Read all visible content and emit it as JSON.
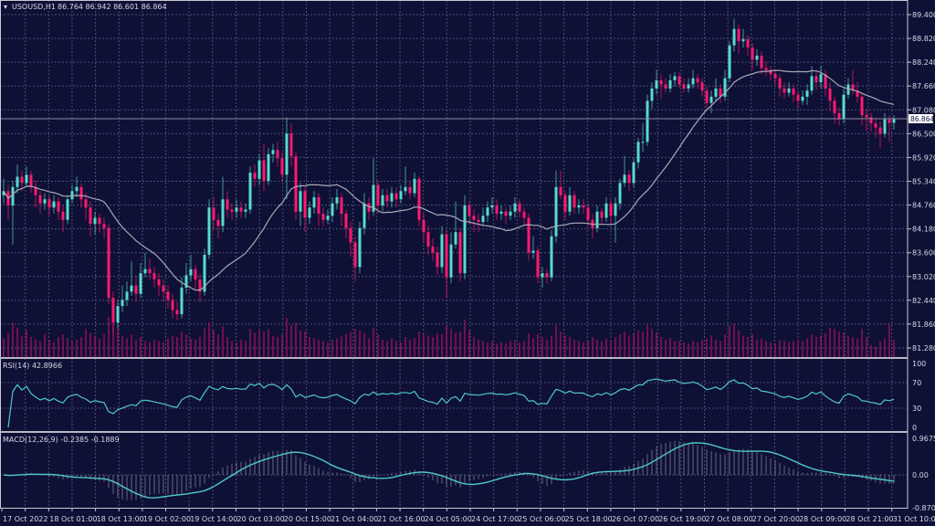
{
  "header": {
    "symbol": "USOUSD,H1",
    "ohlc_text": "86.764 86.942 86.601 86.864"
  },
  "colors": {
    "background": "#0f1036",
    "grid": "#4a4e78",
    "bull": "#56dccb",
    "bear": "#ff1a6e",
    "volume": "#b01060",
    "ma": "#a9a9b4",
    "indicator_line": "#4fc9c9",
    "macd_bars": "#9a9aa6",
    "frame": "#c8c8d2"
  },
  "price_axis": {
    "ticks": [
      "89.400",
      "88.820",
      "88.240",
      "87.660",
      "87.080",
      "86.500",
      "85.920",
      "85.340",
      "84.760",
      "84.180",
      "83.600",
      "83.020",
      "82.440",
      "81.860",
      "81.280"
    ],
    "current_price": "86.864",
    "ylim": [
      81.035,
      89.756
    ]
  },
  "time_axis": {
    "labels": [
      "17 Oct 2022",
      "18 Oct 01:00",
      "18 Oct 13:00",
      "19 Oct 02:00",
      "19 Oct 14:00",
      "20 Oct 03:00",
      "20 Oct 15:00",
      "21 Oct 04:00",
      "21 Oct 16:00",
      "24 Oct 05:00",
      "24 Oct 17:00",
      "25 Oct 06:00",
      "25 Oct 18:00",
      "26 Oct 07:00",
      "26 Oct 19:00",
      "27 Oct 08:00",
      "27 Oct 20:00",
      "28 Oct 09:00",
      "28 Oct 21:00",
      "31 Oct 10:00"
    ]
  },
  "rsi": {
    "label": "RSI(14) 42.8966",
    "ticks": [
      "100",
      "70",
      "30",
      "0"
    ],
    "ylim": [
      0,
      100
    ]
  },
  "macd": {
    "label": "MACD(12,26,9) -0.2385 -0.1889",
    "ticks": [
      "0.9675",
      "0.00",
      "-0.8702"
    ],
    "ylim": [
      -0.8702,
      0.9675
    ]
  },
  "chart_data": {
    "type": "candlestick",
    "title": "USOUSD,H1",
    "ohlc": [
      [
        85.0,
        85.4,
        84.8,
        85.1
      ],
      [
        85.1,
        85.25,
        84.4,
        84.75
      ],
      [
        84.75,
        85.35,
        83.8,
        85.2
      ],
      [
        85.2,
        85.75,
        85.05,
        85.45
      ],
      [
        85.45,
        85.6,
        85.1,
        85.3
      ],
      [
        85.3,
        85.7,
        85.2,
        85.5
      ],
      [
        85.5,
        85.6,
        85.05,
        85.2
      ],
      [
        85.2,
        85.35,
        84.7,
        85.0
      ],
      [
        85.0,
        85.1,
        84.55,
        84.8
      ],
      [
        84.8,
        85.05,
        84.65,
        84.9
      ],
      [
        84.9,
        85.0,
        84.5,
        84.7
      ],
      [
        84.7,
        85.0,
        84.55,
        84.85
      ],
      [
        84.85,
        84.95,
        84.4,
        84.6
      ],
      [
        84.6,
        84.75,
        84.1,
        84.4
      ],
      [
        84.4,
        85.0,
        84.3,
        84.9
      ],
      [
        84.9,
        85.25,
        84.8,
        85.1
      ],
      [
        85.1,
        85.45,
        84.95,
        85.2
      ],
      [
        85.2,
        85.3,
        84.7,
        84.9
      ],
      [
        84.9,
        85.05,
        84.4,
        84.7
      ],
      [
        84.7,
        84.85,
        84.0,
        84.3
      ],
      [
        84.3,
        84.6,
        84.05,
        84.45
      ],
      [
        84.45,
        84.55,
        84.1,
        84.3
      ],
      [
        84.3,
        84.45,
        83.95,
        84.2
      ],
      [
        84.2,
        84.3,
        82.35,
        82.5
      ],
      [
        82.5,
        82.65,
        81.6,
        81.9
      ],
      [
        81.9,
        82.45,
        81.75,
        82.3
      ],
      [
        82.3,
        82.8,
        82.15,
        82.45
      ],
      [
        82.45,
        82.9,
        82.3,
        82.65
      ],
      [
        82.65,
        83.4,
        82.55,
        82.8
      ],
      [
        82.8,
        83.05,
        82.4,
        82.6
      ],
      [
        82.6,
        83.35,
        82.5,
        83.1
      ],
      [
        83.1,
        83.6,
        83.0,
        83.2
      ],
      [
        83.2,
        83.45,
        82.95,
        83.1
      ],
      [
        83.1,
        83.25,
        82.75,
        82.95
      ],
      [
        82.95,
        83.1,
        82.55,
        82.8
      ],
      [
        82.8,
        82.95,
        82.4,
        82.65
      ],
      [
        82.65,
        82.8,
        82.25,
        82.45
      ],
      [
        82.45,
        82.6,
        82.0,
        82.2
      ],
      [
        82.2,
        82.4,
        81.95,
        82.1
      ],
      [
        82.1,
        83.0,
        82.0,
        82.75
      ],
      [
        82.75,
        83.35,
        82.6,
        83.05
      ],
      [
        83.05,
        83.55,
        82.9,
        83.2
      ],
      [
        83.2,
        83.3,
        82.7,
        82.95
      ],
      [
        82.95,
        83.1,
        82.4,
        82.65
      ],
      [
        82.65,
        83.7,
        82.55,
        83.55
      ],
      [
        83.55,
        84.9,
        83.45,
        84.7
      ],
      [
        84.7,
        84.95,
        84.15,
        84.4
      ],
      [
        84.4,
        84.55,
        83.95,
        84.25
      ],
      [
        84.25,
        85.45,
        84.1,
        84.9
      ],
      [
        84.9,
        85.1,
        84.45,
        84.65
      ],
      [
        84.65,
        84.8,
        84.4,
        84.6
      ],
      [
        84.6,
        84.9,
        84.45,
        84.7
      ],
      [
        84.7,
        84.85,
        84.45,
        84.6
      ],
      [
        84.6,
        84.8,
        84.45,
        84.65
      ],
      [
        84.65,
        85.7,
        84.55,
        85.55
      ],
      [
        85.55,
        85.75,
        85.2,
        85.4
      ],
      [
        85.4,
        86.0,
        85.25,
        85.85
      ],
      [
        85.85,
        86.25,
        85.1,
        85.35
      ],
      [
        85.35,
        86.15,
        85.25,
        86.0
      ],
      [
        86.0,
        86.25,
        85.8,
        86.1
      ],
      [
        86.1,
        86.3,
        85.7,
        85.9
      ],
      [
        85.9,
        86.05,
        85.35,
        85.5
      ],
      [
        85.5,
        86.9,
        84.9,
        86.5
      ],
      [
        86.5,
        86.75,
        85.7,
        85.95
      ],
      [
        85.95,
        86.05,
        84.4,
        84.6
      ],
      [
        84.6,
        85.3,
        84.25,
        85.1
      ],
      [
        85.1,
        85.2,
        84.1,
        84.45
      ],
      [
        84.45,
        84.85,
        84.3,
        84.7
      ],
      [
        84.7,
        85.1,
        84.55,
        84.95
      ],
      [
        84.95,
        85.05,
        84.25,
        84.55
      ],
      [
        84.55,
        84.7,
        84.25,
        84.4
      ],
      [
        84.4,
        84.65,
        84.3,
        84.5
      ],
      [
        84.5,
        84.95,
        84.35,
        84.8
      ],
      [
        84.8,
        85.15,
        84.65,
        84.95
      ],
      [
        84.95,
        85.05,
        84.25,
        84.55
      ],
      [
        84.55,
        84.65,
        83.95,
        84.2
      ],
      [
        84.2,
        84.35,
        83.5,
        83.85
      ],
      [
        83.85,
        84.0,
        82.9,
        83.25
      ],
      [
        83.25,
        84.35,
        83.1,
        84.2
      ],
      [
        84.2,
        85.05,
        84.05,
        84.8
      ],
      [
        84.8,
        84.95,
        84.4,
        84.6
      ],
      [
        84.6,
        85.9,
        84.5,
        85.25
      ],
      [
        85.25,
        85.35,
        84.55,
        84.75
      ],
      [
        84.75,
        85.15,
        84.6,
        85.0
      ],
      [
        85.0,
        85.15,
        84.7,
        84.85
      ],
      [
        84.85,
        85.2,
        84.7,
        85.05
      ],
      [
        85.05,
        85.2,
        84.7,
        84.9
      ],
      [
        84.9,
        85.25,
        84.8,
        85.1
      ],
      [
        85.1,
        85.7,
        85.0,
        85.2
      ],
      [
        85.2,
        85.35,
        84.9,
        85.05
      ],
      [
        85.05,
        85.55,
        84.95,
        85.4
      ],
      [
        85.4,
        85.45,
        84.25,
        84.4
      ],
      [
        84.4,
        84.55,
        83.85,
        84.1
      ],
      [
        84.1,
        84.25,
        83.55,
        83.75
      ],
      [
        83.75,
        83.95,
        83.4,
        83.6
      ],
      [
        83.6,
        83.75,
        83.05,
        83.25
      ],
      [
        83.25,
        84.25,
        83.1,
        84.05
      ],
      [
        84.05,
        84.15,
        82.5,
        83.0
      ],
      [
        83.0,
        84.1,
        82.85,
        83.8
      ],
      [
        83.8,
        84.85,
        83.7,
        84.1
      ],
      [
        84.1,
        84.2,
        82.9,
        83.1
      ],
      [
        83.1,
        85.0,
        82.95,
        84.75
      ],
      [
        84.75,
        84.85,
        84.3,
        84.5
      ],
      [
        84.5,
        84.65,
        84.1,
        84.4
      ],
      [
        84.4,
        84.55,
        84.1,
        84.35
      ],
      [
        84.35,
        84.7,
        84.25,
        84.5
      ],
      [
        84.5,
        84.85,
        84.35,
        84.7
      ],
      [
        84.7,
        84.95,
        84.55,
        84.75
      ],
      [
        84.75,
        84.9,
        84.4,
        84.55
      ],
      [
        84.55,
        84.75,
        84.4,
        84.6
      ],
      [
        84.6,
        84.7,
        84.3,
        84.5
      ],
      [
        84.5,
        84.75,
        84.4,
        84.6
      ],
      [
        84.6,
        84.95,
        84.45,
        84.8
      ],
      [
        84.8,
        84.9,
        84.45,
        84.6
      ],
      [
        84.6,
        84.7,
        84.25,
        84.45
      ],
      [
        84.45,
        84.55,
        83.4,
        83.6
      ],
      [
        83.6,
        84.0,
        83.45,
        83.65
      ],
      [
        83.65,
        83.75,
        82.85,
        83.0
      ],
      [
        83.0,
        83.25,
        82.75,
        83.1
      ],
      [
        83.1,
        83.2,
        82.85,
        83.0
      ],
      [
        83.0,
        84.15,
        82.9,
        84.0
      ],
      [
        84.0,
        85.6,
        83.85,
        85.2
      ],
      [
        85.2,
        85.6,
        84.9,
        85.0
      ],
      [
        85.0,
        85.1,
        84.4,
        84.6
      ],
      [
        84.6,
        85.2,
        84.5,
        85.0
      ],
      [
        85.0,
        85.1,
        84.55,
        84.7
      ],
      [
        84.7,
        84.9,
        84.55,
        84.75
      ],
      [
        84.75,
        84.9,
        84.55,
        84.7
      ],
      [
        84.7,
        84.8,
        84.25,
        84.4
      ],
      [
        84.4,
        84.55,
        83.95,
        84.2
      ],
      [
        84.2,
        84.75,
        84.1,
        84.6
      ],
      [
        84.6,
        84.7,
        84.3,
        84.45
      ],
      [
        84.45,
        84.95,
        84.35,
        84.8
      ],
      [
        84.8,
        84.9,
        84.3,
        84.5
      ],
      [
        84.5,
        84.95,
        83.85,
        84.8
      ],
      [
        84.8,
        85.4,
        84.65,
        85.3
      ],
      [
        85.3,
        85.95,
        85.2,
        85.5
      ],
      [
        85.5,
        85.6,
        85.1,
        85.3
      ],
      [
        85.3,
        85.9,
        85.2,
        85.8
      ],
      [
        85.8,
        86.4,
        85.65,
        86.3
      ],
      [
        86.3,
        86.75,
        86.05,
        86.3
      ],
      [
        86.3,
        87.45,
        86.2,
        87.3
      ],
      [
        87.3,
        87.75,
        87.1,
        87.6
      ],
      [
        87.6,
        88.05,
        87.45,
        87.8
      ],
      [
        87.8,
        87.95,
        87.35,
        87.7
      ],
      [
        87.7,
        87.85,
        87.5,
        87.6
      ],
      [
        87.6,
        87.95,
        87.5,
        87.8
      ],
      [
        87.8,
        88.0,
        87.65,
        87.9
      ],
      [
        87.9,
        88.0,
        87.6,
        87.7
      ],
      [
        87.7,
        87.85,
        87.5,
        87.6
      ],
      [
        87.6,
        87.85,
        87.5,
        87.7
      ],
      [
        87.7,
        88.05,
        87.6,
        87.85
      ],
      [
        87.85,
        87.95,
        87.6,
        87.75
      ],
      [
        87.75,
        87.85,
        87.4,
        87.55
      ],
      [
        87.55,
        87.65,
        87.05,
        87.25
      ],
      [
        87.25,
        87.55,
        87.0,
        87.4
      ],
      [
        87.4,
        87.85,
        87.3,
        87.6
      ],
      [
        87.6,
        87.7,
        87.25,
        87.4
      ],
      [
        87.4,
        88.05,
        87.3,
        87.85
      ],
      [
        87.85,
        88.75,
        87.75,
        88.65
      ],
      [
        88.65,
        89.3,
        88.5,
        89.05
      ],
      [
        89.05,
        89.15,
        88.45,
        88.75
      ],
      [
        88.75,
        89.05,
        88.6,
        88.8
      ],
      [
        88.8,
        88.9,
        88.4,
        88.6
      ],
      [
        88.6,
        88.7,
        88.05,
        88.3
      ],
      [
        88.3,
        88.55,
        88.15,
        88.4
      ],
      [
        88.4,
        88.5,
        87.95,
        88.1
      ],
      [
        88.1,
        88.25,
        87.9,
        88.05
      ],
      [
        88.05,
        88.15,
        87.8,
        87.95
      ],
      [
        87.95,
        88.05,
        87.7,
        87.85
      ],
      [
        87.85,
        87.95,
        87.4,
        87.6
      ],
      [
        87.6,
        87.75,
        87.35,
        87.5
      ],
      [
        87.5,
        87.75,
        87.4,
        87.6
      ],
      [
        87.6,
        87.7,
        87.25,
        87.45
      ],
      [
        87.45,
        87.55,
        87.1,
        87.3
      ],
      [
        87.3,
        87.55,
        87.2,
        87.4
      ],
      [
        87.4,
        87.7,
        87.2,
        87.55
      ],
      [
        87.55,
        88.15,
        87.45,
        87.9
      ],
      [
        87.9,
        88.05,
        87.55,
        87.75
      ],
      [
        87.75,
        88.15,
        87.6,
        87.95
      ],
      [
        87.95,
        88.05,
        87.4,
        87.6
      ],
      [
        87.6,
        87.75,
        87.05,
        87.3
      ],
      [
        87.3,
        87.4,
        86.75,
        87.0
      ],
      [
        87.0,
        87.15,
        86.7,
        86.85
      ],
      [
        86.85,
        87.6,
        86.75,
        87.45
      ],
      [
        87.45,
        87.85,
        87.35,
        87.7
      ],
      [
        87.7,
        88.05,
        87.45,
        87.55
      ],
      [
        87.55,
        87.75,
        87.25,
        87.4
      ],
      [
        87.4,
        87.5,
        86.7,
        86.95
      ],
      [
        86.95,
        87.1,
        86.55,
        86.9
      ],
      [
        86.9,
        87.0,
        86.55,
        86.75
      ],
      [
        86.75,
        86.85,
        86.4,
        86.65
      ],
      [
        86.65,
        86.8,
        86.15,
        86.5
      ],
      [
        86.5,
        87.0,
        86.4,
        86.85
      ],
      [
        86.85,
        86.95,
        86.3,
        86.76
      ],
      [
        86.764,
        86.942,
        86.601,
        86.864
      ]
    ],
    "volume": [
      1400,
      1800,
      2600,
      2200,
      1600,
      2000,
      1500,
      1300,
      1200,
      1700,
      1300,
      1100,
      1500,
      1700,
      1400,
      1200,
      1300,
      1500,
      2100,
      1800,
      1600,
      1400,
      1700,
      3000,
      2800,
      2100,
      1600,
      1400,
      1700,
      1300,
      1500,
      1200,
      1100,
      1300,
      1200,
      1100,
      1400,
      1600,
      1500,
      1900,
      1700,
      1400,
      1300,
      1500,
      2200,
      2600,
      2000,
      1700,
      2300,
      1500,
      1200,
      1100,
      1300,
      1200,
      2100,
      1800,
      2000,
      1900,
      2100,
      1600,
      1500,
      1700,
      2900,
      2400,
      2600,
      2000,
      1900,
      1500,
      1400,
      1300,
      1200,
      1100,
      1300,
      1400,
      1600,
      1700,
      1900,
      2100,
      2000,
      1800,
      1400,
      2200,
      1700,
      1300,
      1200,
      1400,
      1200,
      1100,
      1500,
      1300,
      1400,
      1900,
      1700,
      1600,
      1500,
      1800,
      1700,
      2300,
      2100,
      1800,
      1900,
      2800,
      2000,
      1500,
      1300,
      1200,
      1100,
      1200,
      1000,
      1100,
      1000,
      1200,
      1300,
      1100,
      1200,
      1800,
      1400,
      1700,
      1500,
      1300,
      1600,
      2400,
      1900,
      1600,
      1500,
      1300,
      1200,
      1100,
      1200,
      1500,
      1300,
      1200,
      1400,
      1300,
      1500,
      1700,
      1900,
      1600,
      1800,
      2000,
      1900,
      2400,
      2100,
      1800,
      1500,
      1300,
      1400,
      1200,
      1200,
      1100,
      1000,
      1200,
      1100,
      1300,
      1400,
      1600,
      1300,
      1200,
      1700,
      2300,
      2500,
      2000,
      1600,
      1500,
      1700,
      1300,
      1400,
      1200,
      1100,
      1000,
      1300,
      1200,
      1100,
      1200,
      1300,
      1200,
      1400,
      1700,
      1500,
      1600,
      1800,
      2200,
      2100,
      1900,
      1800,
      1600,
      1500,
      1400,
      2100,
      1500,
      900,
      800,
      1200,
      1400,
      2500,
      1300
    ]
  }
}
